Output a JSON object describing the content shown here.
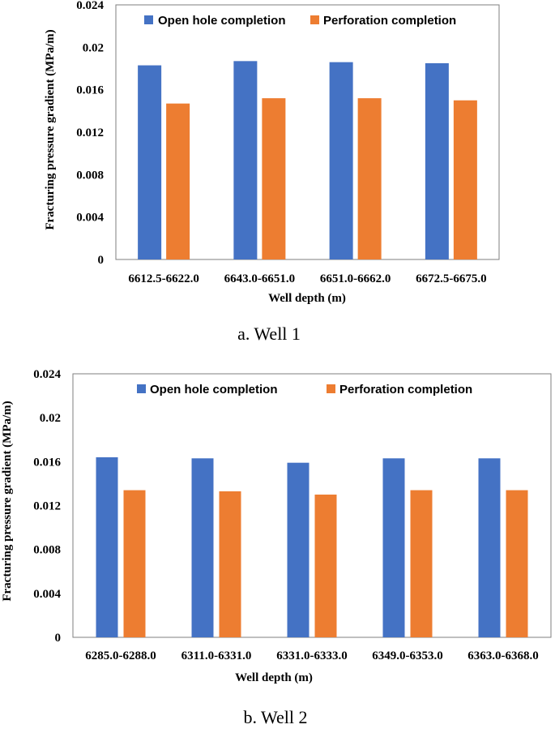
{
  "colors": {
    "open_hole": "#4472C4",
    "perforation": "#ED7D31",
    "frame": "#7f7f7f"
  },
  "chart_data": [
    {
      "type": "bar",
      "caption": "a. Well 1",
      "xlabel": "Well depth (m)",
      "ylabel": "Fracturing pressure gradient (MPa/m)",
      "ylim": [
        0,
        0.024
      ],
      "yticks": [
        "0",
        "0.004",
        "0.008",
        "0.012",
        "0.016",
        "0.02",
        "0.024"
      ],
      "categories": [
        "6612.5-6622.0",
        "6643.0-6651.0",
        "6651.0-6662.0",
        "6672.5-6675.0"
      ],
      "series": [
        {
          "name": "Open hole completion",
          "values": [
            0.0183,
            0.0187,
            0.0186,
            0.0185
          ]
        },
        {
          "name": "Perforation completion",
          "values": [
            0.0147,
            0.0152,
            0.0152,
            0.015
          ]
        }
      ],
      "legend": "top"
    },
    {
      "type": "bar",
      "caption": "b. Well 2",
      "xlabel": "Well depth (m)",
      "ylabel": "Fracturing pressure gradient (MPa/m)",
      "ylim": [
        0,
        0.024
      ],
      "yticks": [
        "0",
        "0.004",
        "0.008",
        "0.012",
        "0.016",
        "0.02",
        "0.024"
      ],
      "categories": [
        "6285.0-6288.0",
        "6311.0-6331.0",
        "6331.0-6333.0",
        "6349.0-6353.0",
        "6363.0-6368.0"
      ],
      "series": [
        {
          "name": "Open hole completion",
          "values": [
            0.0164,
            0.0163,
            0.0159,
            0.0163,
            0.0163
          ]
        },
        {
          "name": "Perforation completion",
          "values": [
            0.0134,
            0.0133,
            0.013,
            0.0134,
            0.0134
          ]
        }
      ],
      "legend": "top"
    }
  ]
}
